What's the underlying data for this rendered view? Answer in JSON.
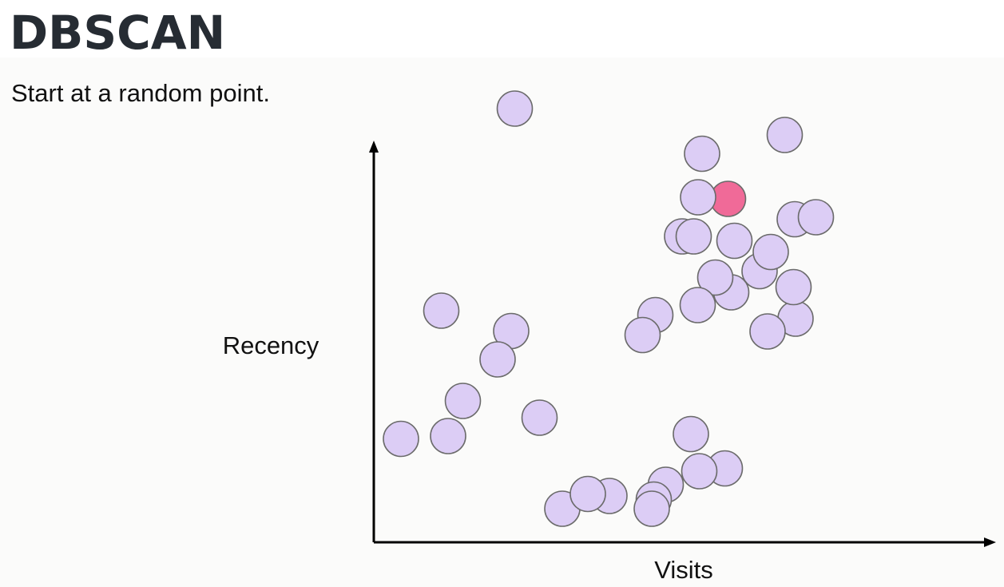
{
  "title": "DBSCAN",
  "subtitle": "Start at a random point.",
  "chart_data": {
    "type": "scatter",
    "xlabel": "Visits",
    "ylabel": "Recency",
    "colors": {
      "point": "#dccdf5",
      "point_stroke": "#6b6b6b",
      "selected": "#f06a98",
      "axis": "#000000"
    },
    "points": [
      {
        "x": 35.3,
        "y": 108.6
      },
      {
        "x": 82.2,
        "y": 97.3
      },
      {
        "x": 102.9,
        "y": 102.0
      },
      {
        "x": 105.4,
        "y": 80.9
      },
      {
        "x": 77.2,
        "y": 76.6
      },
      {
        "x": 90.3,
        "y": 75.5
      },
      {
        "x": 96.6,
        "y": 67.9
      },
      {
        "x": 89.5,
        "y": 62.6
      },
      {
        "x": 85.5,
        "y": 66.3
      },
      {
        "x": 105.6,
        "y": 56.0
      },
      {
        "x": 70.5,
        "y": 56.9
      },
      {
        "x": 88.7,
        "y": 86.0
      },
      {
        "x": 98.6,
        "y": 52.8
      },
      {
        "x": 81.2,
        "y": 86.4
      },
      {
        "x": 81.1,
        "y": 59.4
      },
      {
        "x": 80.1,
        "y": 76.6
      },
      {
        "x": 110.7,
        "y": 81.4
      },
      {
        "x": 105.1,
        "y": 63.9
      },
      {
        "x": 99.4,
        "y": 72.7
      },
      {
        "x": 67.3,
        "y": 51.9
      },
      {
        "x": 87.9,
        "y": 18.5
      },
      {
        "x": 16.9,
        "y": 58.0
      },
      {
        "x": 34.4,
        "y": 52.9
      },
      {
        "x": 31.0,
        "y": 45.8
      },
      {
        "x": 22.3,
        "y": 35.4
      },
      {
        "x": 41.5,
        "y": 31.2
      },
      {
        "x": 18.6,
        "y": 26.6
      },
      {
        "x": 6.8,
        "y": 25.9
      },
      {
        "x": 79.4,
        "y": 27.1
      },
      {
        "x": 73.1,
        "y": 14.4
      },
      {
        "x": 81.5,
        "y": 17.8
      },
      {
        "x": 70.1,
        "y": 10.7
      },
      {
        "x": 59.0,
        "y": 11.6
      },
      {
        "x": 47.2,
        "y": 8.4
      },
      {
        "x": 53.6,
        "y": 12.1
      },
      {
        "x": 69.6,
        "y": 8.4
      }
    ],
    "selected_index": 11
  }
}
